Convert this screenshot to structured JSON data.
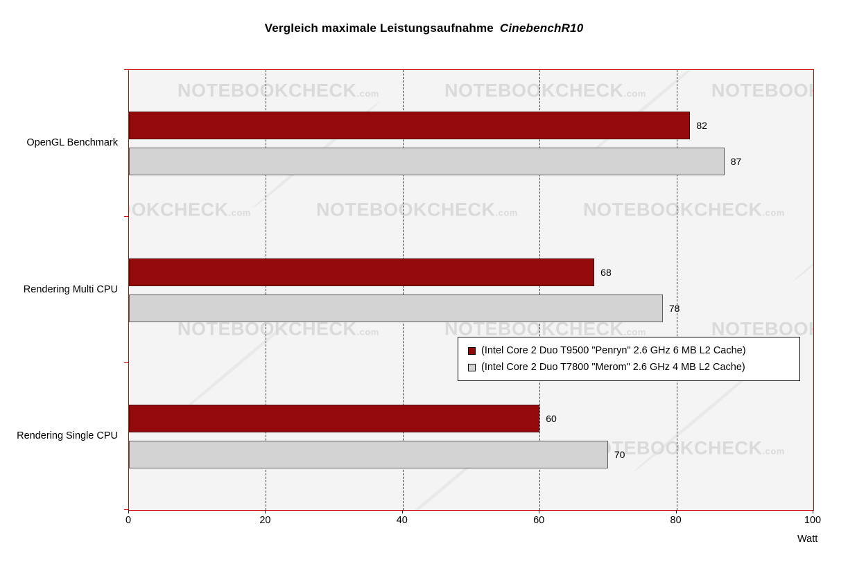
{
  "title": {
    "text": "Vergleich maximale Leistungsaufnahme",
    "emphasis": "CinebenchR10"
  },
  "watermark": {
    "text": "NOTEBOOKCHECK",
    "suffix": ".com"
  },
  "chart_data": {
    "type": "bar",
    "orientation": "horizontal",
    "title": "Vergleich maximale Leistungsaufnahme CinebenchR10",
    "categories": [
      "OpenGL Benchmark",
      "Rendering Multi CPU",
      "Rendering Single CPU"
    ],
    "series": [
      {
        "name": "(Intel Core 2 Duo T9500 \"Penryn\" 2.6 GHz 6 MB L2 Cache)",
        "color": "#940a0a",
        "border_color": "#4a0202",
        "values": [
          82,
          68,
          60
        ]
      },
      {
        "name": "(Intel Core 2 Duo T7800 \"Merom\" 2.6 GHz 4 MB L2 Cache)",
        "color": "#d3d3d3",
        "border_color": "#5a5a5a",
        "values": [
          87,
          78,
          70
        ]
      }
    ],
    "xlabel": "Watt",
    "xlim": [
      0,
      100
    ],
    "xticks": [
      0,
      20,
      40,
      60,
      80,
      100
    ],
    "grid": "vertical-dashed",
    "legend_position": "inside-middle-right",
    "plot_border_color": "#cc0000",
    "plot_background": "#f4f4f4"
  }
}
